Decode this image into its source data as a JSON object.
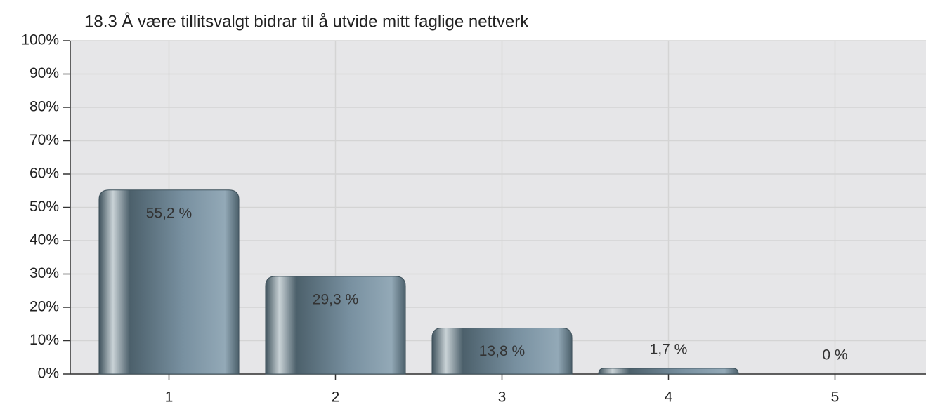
{
  "chart_data": {
    "type": "bar",
    "title": "18.3 Å være tillitsvalgt bidrar til å utvide mitt faglige nettverk",
    "categories": [
      "1",
      "2",
      "3",
      "4",
      "5"
    ],
    "values": [
      55.2,
      29.3,
      13.8,
      1.7,
      0
    ],
    "value_labels": [
      "55,2 %",
      "29,3 %",
      "13,8 %",
      "1,7 %",
      "0 %"
    ],
    "color": "#6e8796",
    "ylim": [
      0,
      100
    ],
    "yticks": [
      {
        "value": 0,
        "label": "0%"
      },
      {
        "value": 10,
        "label": "10%"
      },
      {
        "value": 20,
        "label": "20%"
      },
      {
        "value": 30,
        "label": "30%"
      },
      {
        "value": 40,
        "label": "40%"
      },
      {
        "value": 50,
        "label": "50%"
      },
      {
        "value": 60,
        "label": "60%"
      },
      {
        "value": 70,
        "label": "70%"
      },
      {
        "value": 80,
        "label": "80%"
      },
      {
        "value": 90,
        "label": "90%"
      },
      {
        "value": 100,
        "label": "100%"
      }
    ],
    "grid": true
  }
}
